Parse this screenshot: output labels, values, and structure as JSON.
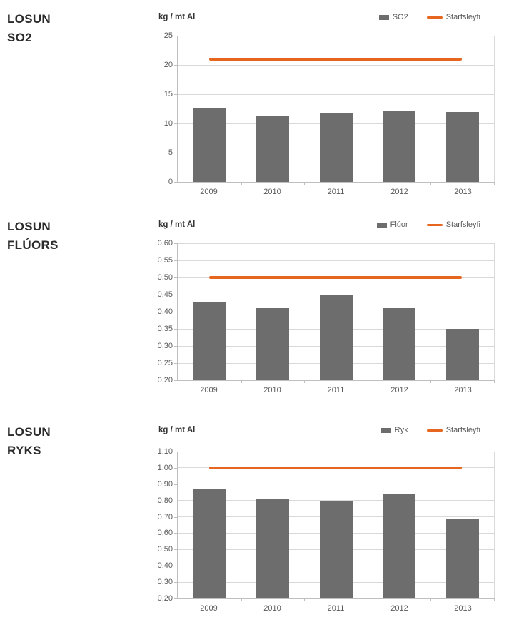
{
  "colors": {
    "bar": "#6d6d6d",
    "limit_line": "#e6661f",
    "gridline": "#d9d9d9",
    "axis_line": "#bfbfbf",
    "tick_label": "#595959",
    "title_text": "#2b2b2b",
    "background": "#ffffff"
  },
  "chart_data": [
    {
      "type": "bar",
      "title": "LOSUN\nSO2",
      "unit_label": "kg / mt Al",
      "categories": [
        "2009",
        "2010",
        "2011",
        "2012",
        "2013"
      ],
      "series": [
        {
          "name": "SO2",
          "type": "bar",
          "values": [
            12.5,
            11.2,
            11.8,
            12.1,
            12.0
          ]
        },
        {
          "name": "Starfsleyfi",
          "type": "line",
          "value": 21
        }
      ],
      "ylim": [
        0,
        25
      ],
      "ytick_labels": [
        "0",
        "5",
        "10",
        "15",
        "20",
        "25"
      ],
      "grid": true,
      "legend_position": "top-right"
    },
    {
      "type": "bar",
      "title": "LOSUN\nFLÚORS",
      "unit_label": "kg / mt Al",
      "categories": [
        "2009",
        "2010",
        "2011",
        "2012",
        "2013"
      ],
      "series": [
        {
          "name": "Flúor",
          "type": "bar",
          "values": [
            0.43,
            0.41,
            0.45,
            0.41,
            0.35
          ]
        },
        {
          "name": "Starfsleyfi",
          "type": "line",
          "value": 0.5
        }
      ],
      "ylim": [
        0.2,
        0.6
      ],
      "ytick_labels": [
        "0,20",
        "0,25",
        "0,30",
        "0,35",
        "0,40",
        "0,45",
        "0,50",
        "0,55",
        "0,60"
      ],
      "grid": true,
      "legend_position": "top-right"
    },
    {
      "type": "bar",
      "title": "LOSUN\nRYKS",
      "unit_label": "kg / mt Al",
      "categories": [
        "2009",
        "2010",
        "2011",
        "2012",
        "2013"
      ],
      "series": [
        {
          "name": "Ryk",
          "type": "bar",
          "values": [
            0.87,
            0.81,
            0.8,
            0.84,
            0.69
          ]
        },
        {
          "name": "Starfsleyfi",
          "type": "line",
          "value": 1.0
        }
      ],
      "ylim": [
        0.2,
        1.1
      ],
      "ytick_labels": [
        "0,20",
        "0,30",
        "0,40",
        "0,50",
        "0,60",
        "0,70",
        "0,80",
        "0,90",
        "1,00",
        "1,10"
      ],
      "grid": true,
      "legend_position": "top-right"
    }
  ]
}
